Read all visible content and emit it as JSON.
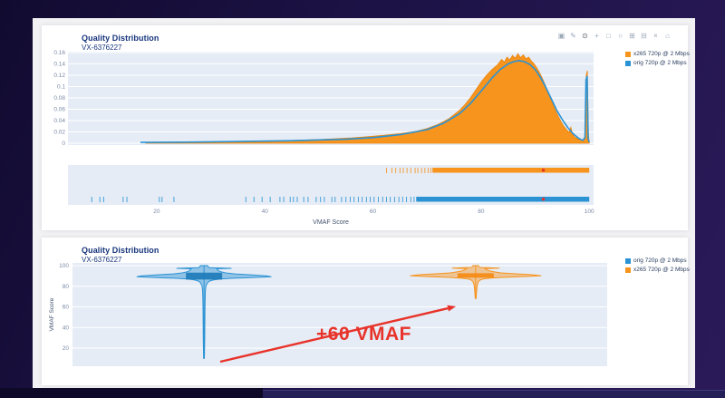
{
  "theme": {
    "panel_bg": "#E5ECF6",
    "grid": "#ffffff",
    "orange": "#F7941E",
    "orange_stroke": "#E8840C",
    "orange_box": "#F58A0F",
    "blue": "#2B93D4",
    "blue_box": "#1B7AB8",
    "navy_title": "#17357C",
    "tick_text": "#7A8AA6",
    "axis_title_text": "#42526E",
    "annotation_red": "#E8332A"
  },
  "modebar": {
    "icons": [
      {
        "name": "download-plot-icon",
        "glyph": "▣"
      },
      {
        "name": "edit-icon",
        "glyph": "✎"
      },
      {
        "name": "zoom-icon",
        "glyph": "⊙",
        "active": true
      },
      {
        "name": "pan-icon",
        "glyph": "+"
      },
      {
        "name": "box-select-icon",
        "glyph": "□"
      },
      {
        "name": "lasso-select-icon",
        "glyph": "○"
      },
      {
        "name": "zoom-in-icon",
        "glyph": "⊞"
      },
      {
        "name": "zoom-out-icon",
        "glyph": "⊟"
      },
      {
        "name": "autoscale-icon",
        "glyph": "×"
      },
      {
        "name": "reset-axes-icon",
        "glyph": "⌂"
      }
    ]
  },
  "chart_data": [
    {
      "type": "area",
      "title": "Quality Distribution",
      "subtitle": "VX-6376227",
      "xlabel": "VMAF Score",
      "xlim": [
        3.6,
        100.8
      ],
      "ylim": [
        0,
        0.165
      ],
      "x_ticks": [
        20,
        40,
        60,
        80,
        100
      ],
      "y_ticks": [
        0,
        0.02,
        0.04,
        0.06,
        0.08,
        0.1,
        0.12,
        0.14,
        0.16
      ],
      "y_tick_labels": [
        "0",
        "0.02",
        "0.04",
        "0.06",
        "0.08",
        "0.1",
        "0.12",
        "0.14",
        "0.16"
      ],
      "legend": [
        {
          "label": "x265 720p @ 2 Mbps",
          "color": "#F7941E"
        },
        {
          "label": "orig 720p @ 2 Mbps",
          "color": "#2B93D4"
        }
      ],
      "series": [
        {
          "name": "x265 720p @ 2 Mbps",
          "color": "#F7941E",
          "fill": true,
          "points": [
            [
              18,
              0.001
            ],
            [
              25,
              0.0015
            ],
            [
              30,
              0.002
            ],
            [
              35,
              0.0028
            ],
            [
              40,
              0.0035
            ],
            [
              45,
              0.005
            ],
            [
              50,
              0.0065
            ],
            [
              53,
              0.008
            ],
            [
              56,
              0.0095
            ],
            [
              59,
              0.0115
            ],
            [
              62,
              0.014
            ],
            [
              65,
              0.017
            ],
            [
              68,
              0.021
            ],
            [
              70,
              0.026
            ],
            [
              72,
              0.033
            ],
            [
              74,
              0.043
            ],
            [
              76,
              0.058
            ],
            [
              77,
              0.068
            ],
            [
              78,
              0.08
            ],
            [
              79,
              0.094
            ],
            [
              80,
              0.108
            ],
            [
              81,
              0.12
            ],
            [
              82,
              0.13
            ],
            [
              83,
              0.138
            ],
            [
              83.8,
              0.148
            ],
            [
              84.3,
              0.143
            ],
            [
              84.8,
              0.152
            ],
            [
              85.3,
              0.147
            ],
            [
              85.8,
              0.155
            ],
            [
              86.3,
              0.15
            ],
            [
              86.8,
              0.158
            ],
            [
              87.3,
              0.151
            ],
            [
              87.8,
              0.156
            ],
            [
              88.3,
              0.149
            ],
            [
              88.8,
              0.152
            ],
            [
              89.3,
              0.145
            ],
            [
              89.8,
              0.14
            ],
            [
              90.3,
              0.133
            ],
            [
              90.8,
              0.125
            ],
            [
              91.3,
              0.115
            ],
            [
              91.8,
              0.104
            ],
            [
              92.3,
              0.092
            ],
            [
              92.8,
              0.08
            ],
            [
              93.3,
              0.068
            ],
            [
              93.8,
              0.057
            ],
            [
              94.3,
              0.047
            ],
            [
              94.8,
              0.038
            ],
            [
              95.3,
              0.03
            ],
            [
              95.8,
              0.024
            ],
            [
              96.3,
              0.019
            ],
            [
              96.6,
              0.028
            ],
            [
              96.9,
              0.016
            ],
            [
              97.3,
              0.011
            ],
            [
              97.8,
              0.008
            ],
            [
              98.3,
              0.006
            ],
            [
              98.8,
              0.005
            ],
            [
              99.2,
              0.012
            ],
            [
              99.45,
              0.12
            ],
            [
              99.65,
              0.128
            ],
            [
              99.85,
              0.015
            ],
            [
              100,
              0.002
            ]
          ]
        },
        {
          "name": "orig 720p @ 2 Mbps",
          "color": "#2B93D4",
          "fill": false,
          "points": [
            [
              17,
              0.0015
            ],
            [
              25,
              0.002
            ],
            [
              35,
              0.003
            ],
            [
              45,
              0.0045
            ],
            [
              55,
              0.007
            ],
            [
              60,
              0.01
            ],
            [
              65,
              0.015
            ],
            [
              70,
              0.024
            ],
            [
              73,
              0.035
            ],
            [
              76,
              0.052
            ],
            [
              78,
              0.07
            ],
            [
              80,
              0.092
            ],
            [
              82,
              0.115
            ],
            [
              83.5,
              0.13
            ],
            [
              85,
              0.14
            ],
            [
              86,
              0.144
            ],
            [
              87,
              0.146
            ],
            [
              88,
              0.144
            ],
            [
              89,
              0.139
            ],
            [
              90,
              0.13
            ],
            [
              91,
              0.116
            ],
            [
              92,
              0.098
            ],
            [
              93,
              0.078
            ],
            [
              94,
              0.058
            ],
            [
              95,
              0.042
            ],
            [
              96,
              0.028
            ],
            [
              97,
              0.017
            ],
            [
              98,
              0.009
            ],
            [
              98.8,
              0.005
            ],
            [
              99.2,
              0.01
            ],
            [
              99.4,
              0.112
            ],
            [
              99.6,
              0.118
            ],
            [
              99.8,
              0.008
            ],
            [
              100,
              0.002
            ]
          ]
        }
      ],
      "rug": [
        {
          "name": "x265 720p @ 2 Mbps",
          "color": "#F7941E",
          "row": "top",
          "ticks": [
            62.5,
            63.5,
            64.2,
            65,
            65.6,
            66.3,
            67,
            67.8,
            68.3,
            69,
            69.6,
            70.2,
            70.7
          ],
          "solid": [
            71,
            100
          ],
          "dot": 91.5,
          "dot_color": "#E8332A"
        },
        {
          "name": "orig 720p @ 2 Mbps",
          "color": "#2B93D4",
          "row": "bottom",
          "ticks": [
            8,
            9.5,
            10.2,
            13.8,
            14.5,
            20.5,
            21,
            23.2,
            36.5,
            38,
            39.5,
            41,
            42.8,
            43.5,
            44.7,
            45.3,
            46,
            47.2,
            48,
            49.5,
            50.3,
            51,
            52.4,
            53,
            54.2,
            55,
            55.8,
            56.5,
            57.3,
            58,
            58.8,
            59.5,
            60.2,
            61,
            61.8,
            62.5,
            63.2,
            64,
            64.8,
            65.5,
            66.2,
            67,
            67.6
          ],
          "solid": [
            68,
            100
          ],
          "dot": 91.5,
          "dot_color": "#E8332A"
        }
      ]
    },
    {
      "type": "violin",
      "title": "Quality Distribution",
      "subtitle": "VX-6376227",
      "ylabel": "VMAF Score",
      "ylim": [
        2.5,
        102.5
      ],
      "y_ticks": [
        20,
        40,
        60,
        80,
        100
      ],
      "legend": [
        {
          "label": "orig 720p @ 2 Mbps",
          "color": "#2B93D4"
        },
        {
          "label": "x265 720p @ 2 Mbps",
          "color": "#F7941E"
        }
      ],
      "violins": [
        {
          "name": "orig 720p @ 2 Mbps",
          "color": "#2B93D4",
          "box_color": "#1B7AB8",
          "cx_frac": 0.246,
          "whisker_top": 100,
          "tail_min": 10,
          "outline": [
            [
              100,
              4
            ],
            [
              99,
              4.5
            ],
            [
              98,
              6
            ],
            [
              97.4,
              30
            ],
            [
              96.9,
              14
            ],
            [
              96,
              15
            ],
            [
              95,
              16
            ],
            [
              94,
              19
            ],
            [
              93,
              24
            ],
            [
              92,
              34
            ],
            [
              91,
              54
            ],
            [
              90,
              70
            ],
            [
              89.3,
              74
            ],
            [
              88.5,
              54
            ],
            [
              87.7,
              30
            ],
            [
              87,
              18
            ],
            [
              86,
              10
            ],
            [
              85,
              6
            ],
            [
              83.5,
              4
            ],
            [
              81,
              2.5
            ],
            [
              78,
              1.8
            ],
            [
              74,
              1.5
            ],
            [
              68,
              1.3
            ],
            [
              60,
              1.1
            ],
            [
              50,
              1
            ],
            [
              40,
              0.9
            ],
            [
              28,
              0.8
            ],
            [
              18,
              0.6
            ],
            [
              10,
              0.4
            ]
          ],
          "box": {
            "lo": 86.5,
            "hi": 93.2,
            "halfwidth": 20
          },
          "points": [
            10.5,
            13,
            15.5,
            18,
            20.5,
            23,
            25.5,
            28,
            30,
            32,
            34,
            36,
            38,
            40,
            42,
            44,
            46,
            48,
            50,
            52
          ]
        },
        {
          "name": "x265 720p @ 2 Mbps",
          "color": "#F7941E",
          "box_color": "#F58A0F",
          "cx_frac": 0.754,
          "whisker_top": 100,
          "tail_min": 68,
          "outline": [
            [
              100,
              3
            ],
            [
              99,
              3.5
            ],
            [
              98.2,
              5
            ],
            [
              97.6,
              26
            ],
            [
              97.1,
              10
            ],
            [
              96,
              12
            ],
            [
              95,
              15
            ],
            [
              94,
              20
            ],
            [
              93,
              28
            ],
            [
              92.2,
              42
            ],
            [
              91.2,
              62
            ],
            [
              90.2,
              72
            ],
            [
              89.4,
              52
            ],
            [
              88.6,
              28
            ],
            [
              87.8,
              15
            ],
            [
              87,
              8
            ],
            [
              86,
              5
            ],
            [
              84.5,
              3
            ],
            [
              82,
              2
            ],
            [
              79,
              1.4
            ],
            [
              75,
              1
            ],
            [
              71,
              0.7
            ],
            [
              68,
              0.4
            ]
          ],
          "box": {
            "lo": 88.3,
            "hi": 92.6,
            "halfwidth": 20
          },
          "points": []
        }
      ],
      "annotation": {
        "text": "+60 VMAF",
        "color": "#E8332A",
        "arrow_from": [
          197,
          137
        ],
        "arrow_to": [
          457,
          76
        ]
      }
    }
  ]
}
